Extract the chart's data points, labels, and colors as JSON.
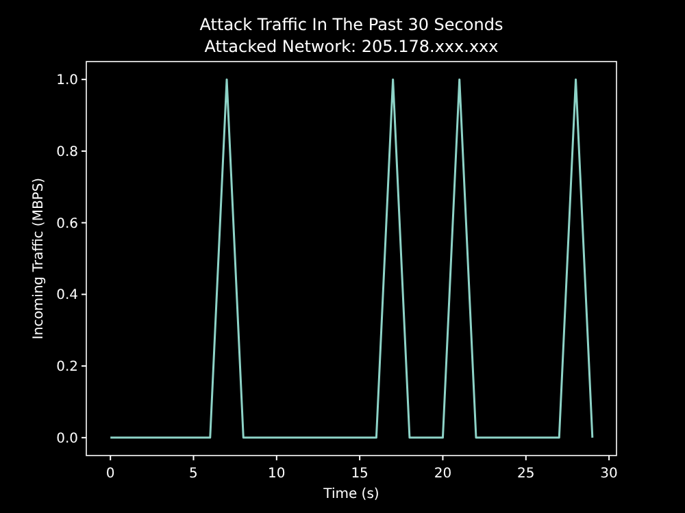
{
  "chart_data": {
    "type": "line",
    "title": "Attack Traffic In The Past 30 Seconds",
    "subtitle": "Attacked Network: 205.178.xxx.xxx",
    "xlabel": "Time (s)",
    "ylabel": "Incoming Traffic (MBPS)",
    "x": [
      0,
      1,
      2,
      3,
      4,
      5,
      6,
      7,
      8,
      9,
      10,
      11,
      12,
      13,
      14,
      15,
      16,
      17,
      18,
      19,
      20,
      21,
      22,
      23,
      24,
      25,
      26,
      27,
      28,
      29
    ],
    "series": [
      {
        "color": "#8dd3c7",
        "values": [
          0,
          0,
          0,
          0,
          0,
          0,
          0,
          1,
          0,
          0,
          0,
          0,
          0,
          0,
          0,
          0,
          0,
          1,
          0,
          0,
          0,
          1,
          0,
          0,
          0,
          0,
          0,
          0,
          1,
          0
        ]
      }
    ],
    "xlim": [
      -1.45,
      30.45
    ],
    "ylim": [
      -0.05,
      1.05
    ],
    "xticks": [
      0,
      5,
      10,
      15,
      20,
      25,
      30
    ],
    "yticks": [
      {
        "value": 0,
        "label": "0.0"
      },
      {
        "value": 0.2,
        "label": "0.2"
      },
      {
        "value": 0.4,
        "label": "0.4"
      },
      {
        "value": 0.6,
        "label": "0.6"
      },
      {
        "value": 0.8,
        "label": "0.8"
      },
      {
        "value": 1,
        "label": "1.0"
      }
    ],
    "grid": false,
    "marker": "none",
    "line_style": "solid"
  }
}
